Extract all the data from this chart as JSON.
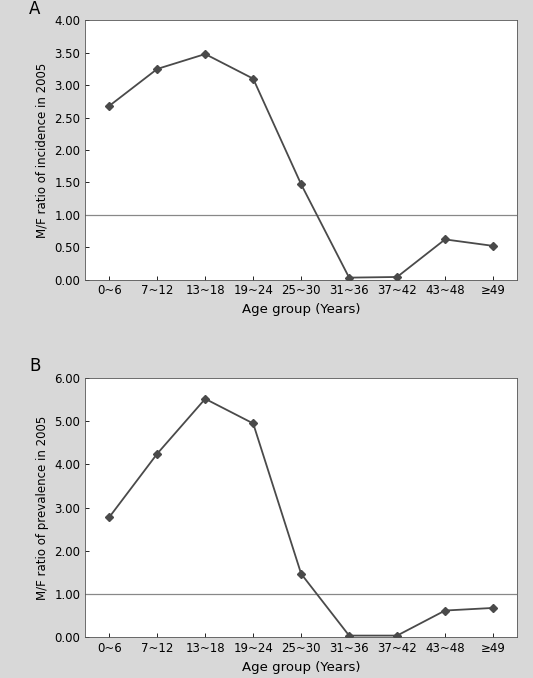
{
  "age_labels": [
    "0~6",
    "7~12",
    "13~18",
    "19~24",
    "25~30",
    "31~36",
    "37~42",
    "43~48",
    "≥49"
  ],
  "incidence_values": [
    2.68,
    3.25,
    3.48,
    3.1,
    1.47,
    0.03,
    0.04,
    0.62,
    0.52
  ],
  "prevalence_values": [
    2.78,
    4.25,
    5.52,
    4.95,
    1.47,
    0.04,
    0.04,
    0.62,
    0.68
  ],
  "panel_A_ylabel": "M/F ratio of incidence in 2005",
  "panel_B_ylabel": "M/F ratio of prevalence in 2005",
  "xlabel": "Age group (Years)",
  "panel_A_ylim": [
    0.0,
    4.0
  ],
  "panel_B_ylim": [
    0.0,
    6.0
  ],
  "panel_A_yticks": [
    0.0,
    0.5,
    1.0,
    1.5,
    2.0,
    2.5,
    3.0,
    3.5,
    4.0
  ],
  "panel_B_yticks": [
    0.0,
    1.0,
    2.0,
    3.0,
    4.0,
    5.0,
    6.0
  ],
  "hline_value": 1.0,
  "line_color": "#4a4a4a",
  "hline_color": "#888888",
  "marker": "D",
  "marker_size": 4,
  "line_width": 1.3,
  "label_A": "A",
  "label_B": "B",
  "fig_bg_color": "#d8d8d8",
  "panel_bg_color": "#ffffff",
  "fig_width": 5.33,
  "fig_height": 6.78,
  "dpi": 100
}
